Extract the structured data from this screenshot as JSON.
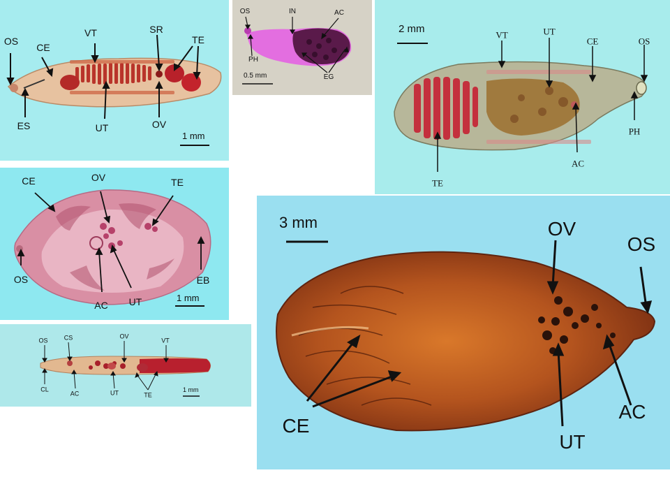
{
  "panels": {
    "p1": {
      "labels": {
        "os": "OS",
        "ce": "CE",
        "vt": "VT",
        "sr": "SR",
        "te": "TE",
        "es": "ES",
        "ut": "UT",
        "ov": "OV"
      },
      "scale": "1 mm"
    },
    "p2": {
      "labels": {
        "os": "OS",
        "in": "IN",
        "ac": "AC",
        "ph": "PH",
        "eg": "EG"
      },
      "scale": "0.5 mm"
    },
    "p3": {
      "labels": {
        "vt": "VT",
        "ut": "UT",
        "ce": "CE",
        "os": "OS",
        "te": "TE",
        "ac": "AC",
        "ph": "PH"
      },
      "scale": "2 mm"
    },
    "p4": {
      "labels": {
        "ce": "CE",
        "ov": "OV",
        "te": "TE",
        "os": "OS",
        "ac": "AC",
        "ut": "UT",
        "eb": "EB"
      },
      "scale": "1 mm"
    },
    "p5": {
      "labels": {
        "os": "OS",
        "cs": "CS",
        "ov": "OV",
        "vt": "VT",
        "cl": "CL",
        "ac": "AC",
        "ut": "UT",
        "te": "TE"
      },
      "scale": "1 mm"
    },
    "p6": {
      "labels": {
        "ov": "OV",
        "os": "OS",
        "ce": "CE",
        "ut": "UT",
        "ac": "AC"
      },
      "scale": "3 mm"
    }
  },
  "colors": {
    "bg_cyan": "#a6ecef",
    "bg_cyan2": "#8ee8f0",
    "bg_grey": "#d6d2c6",
    "bg_light": "#aee8ea",
    "bg_blue": "#9adff0"
  }
}
